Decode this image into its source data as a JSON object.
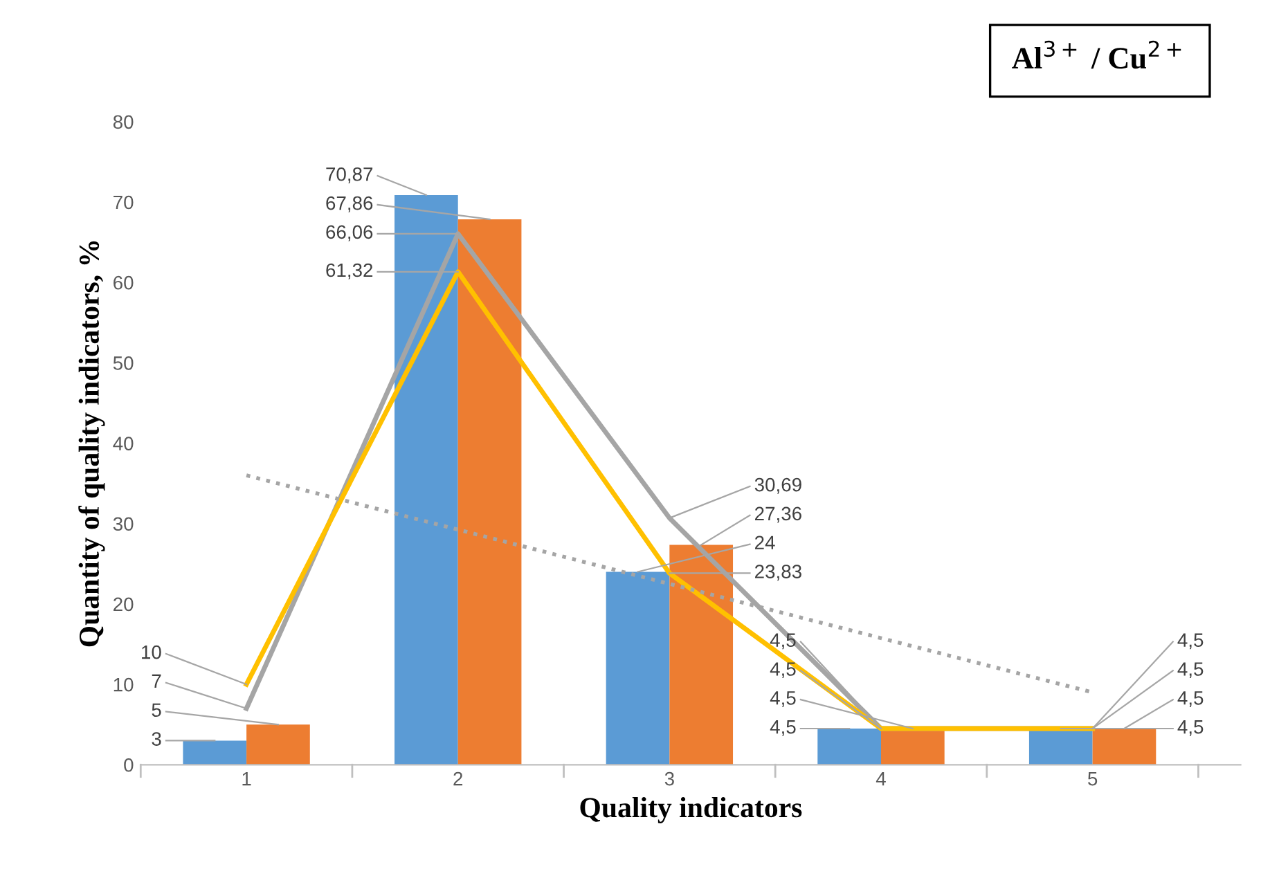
{
  "chart_data": {
    "type": "bar",
    "xlabel": "Quality indicators",
    "ylabel": "Quantity of quality indicators, %",
    "categories": [
      "1",
      "2",
      "3",
      "4",
      "5"
    ],
    "series": [
      {
        "color": "#5b9bd5",
        "values": [
          3,
          70.87,
          24,
          4.5,
          4.5
        ],
        "value_labels": [
          "3",
          "70,87",
          "24",
          "4,5",
          "4,5"
        ]
      },
      {
        "color": "#ed7d31",
        "values": [
          5,
          67.86,
          27.36,
          4.5,
          4.5
        ],
        "value_labels": [
          "5",
          "67,86",
          "27,36",
          "4,5",
          "4,5"
        ]
      },
      {
        "type": "line",
        "color": "#a5a5a5",
        "values": [
          7,
          66.06,
          30.69,
          4.5,
          4.5
        ],
        "value_labels": [
          "7",
          "66,06",
          "30,69",
          "4,5",
          "4,5"
        ]
      },
      {
        "type": "line",
        "color": "#ffc000",
        "values": [
          10,
          61.32,
          23.83,
          4.5,
          4.5
        ],
        "value_labels": [
          "10",
          "61,32",
          "23,83",
          "4,5",
          "4,5"
        ]
      },
      {
        "type": "line",
        "color": "#a5a5a5",
        "x": [
          "1",
          "5"
        ],
        "values": [
          36,
          9
        ],
        "line_style": "dotted"
      }
    ],
    "ylim": [
      0,
      80
    ],
    "yticks": [
      0,
      10,
      20,
      30,
      40,
      50,
      60,
      70,
      80
    ],
    "grid": false,
    "legend": false,
    "marker": "none",
    "annotations": [
      "Al$^{3+}$ / Cu$^{2+}$"
    ]
  }
}
